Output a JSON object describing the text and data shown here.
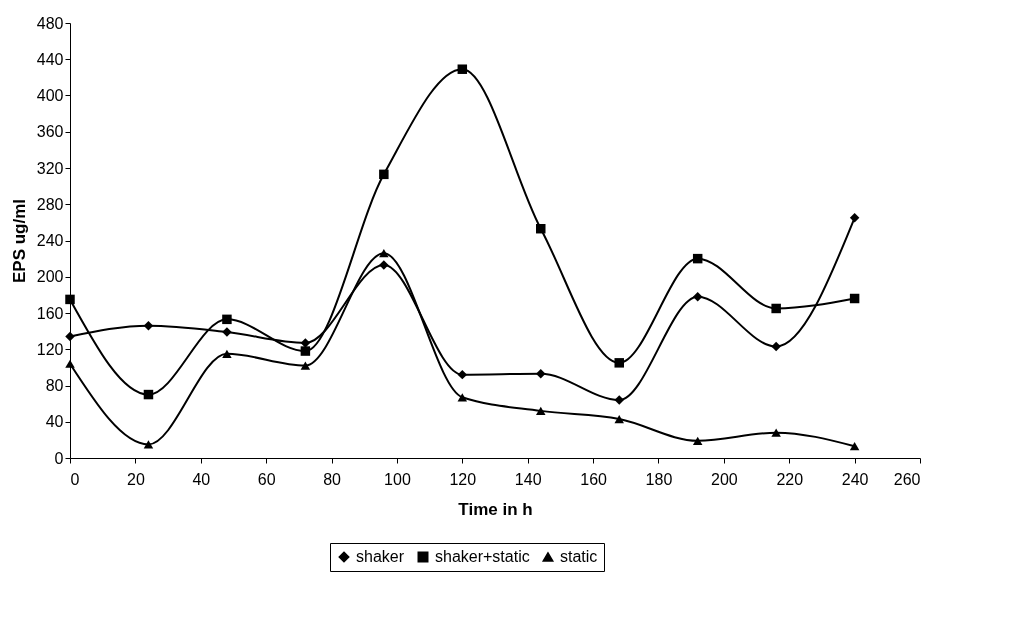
{
  "chart_data": {
    "type": "line",
    "xlabel": "Time in h",
    "ylabel": "EPS ug/ml",
    "x": [
      0,
      24,
      48,
      72,
      96,
      120,
      144,
      168,
      192,
      216,
      240
    ],
    "series": [
      {
        "name": "shaker",
        "color": "#000000",
        "marker": "diamond",
        "values": [
          134,
          146,
          139,
          127,
          213,
          92,
          93,
          64,
          178,
          123,
          265
        ]
      },
      {
        "name": "shaker+static",
        "color": "#000000",
        "marker": "square",
        "values": [
          175,
          70,
          153,
          118,
          313,
          429,
          253,
          105,
          220,
          165,
          176
        ]
      },
      {
        "name": "static",
        "color": "#000000",
        "marker": "triangle",
        "values": [
          104,
          15,
          115,
          102,
          226,
          67,
          52,
          43,
          19,
          28,
          13
        ]
      }
    ],
    "xlim": [
      0,
      260
    ],
    "xticks": [
      0,
      20,
      40,
      60,
      80,
      100,
      120,
      140,
      160,
      180,
      200,
      220,
      240,
      260
    ],
    "ylim": [
      0,
      480
    ],
    "yticks": [
      0,
      40,
      80,
      120,
      160,
      200,
      240,
      280,
      320,
      360,
      400,
      440,
      480
    ],
    "grid": false,
    "legend": "bottom",
    "line_style": "solid"
  }
}
